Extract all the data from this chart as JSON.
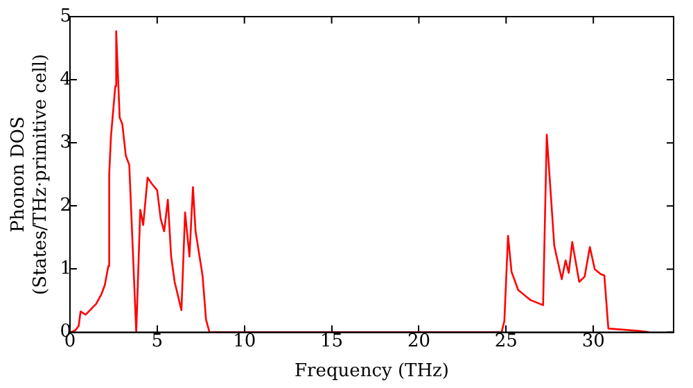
{
  "chart_data": {
    "type": "line",
    "xlabel": "Frequency (THz)",
    "ylabel": "Phonon DOS\n(States/THz·primitive cell)",
    "xlim": [
      0,
      34.6
    ],
    "ylim": [
      0,
      5
    ],
    "xticks": [
      0,
      5,
      10,
      15,
      20,
      25,
      30
    ],
    "yticks": [
      0,
      1,
      2,
      3,
      4,
      5
    ],
    "grid": false,
    "legend": false,
    "marker": "none",
    "line_style": "solid",
    "series": [
      {
        "color": "#ff0000",
        "x": [
          0,
          0.3,
          0.5,
          0.61,
          0.9,
          1.5,
          1.8,
          2.0,
          2.2,
          2.25,
          2.35,
          2.6,
          2.65,
          2.85,
          3.0,
          3.2,
          3.4,
          3.8,
          4.03,
          4.2,
          4.45,
          4.7,
          5.0,
          5.2,
          5.4,
          5.61,
          5.8,
          6.0,
          6.39,
          6.6,
          6.85,
          7.05,
          7.2,
          7.6,
          7.8,
          8.0,
          24.74,
          24.9,
          25.11,
          25.31,
          25.69,
          26.4,
          27.12,
          27.33,
          27.76,
          28.19,
          28.41,
          28.59,
          28.79,
          29.19,
          29.5,
          29.8,
          30.08,
          30.43,
          30.63,
          30.86,
          32.7,
          33.2
        ],
        "values": [
          0,
          0.03,
          0.1,
          0.33,
          0.28,
          0.45,
          0.6,
          0.75,
          1.05,
          2.5,
          3.1,
          3.9,
          4.77,
          3.4,
          3.3,
          2.8,
          2.65,
          0,
          1.94,
          1.7,
          2.45,
          2.35,
          2.25,
          1.8,
          1.6,
          2.1,
          1.2,
          0.8,
          0.35,
          1.9,
          1.2,
          2.3,
          1.6,
          0.9,
          0.2,
          0,
          0,
          0.18,
          1.53,
          0.96,
          0.67,
          0.51,
          0.43,
          3.13,
          1.37,
          0.84,
          1.14,
          0.94,
          1.43,
          0.8,
          0.88,
          1.35,
          1.0,
          0.92,
          0.9,
          0.06,
          0.02,
          0
        ]
      }
    ]
  }
}
